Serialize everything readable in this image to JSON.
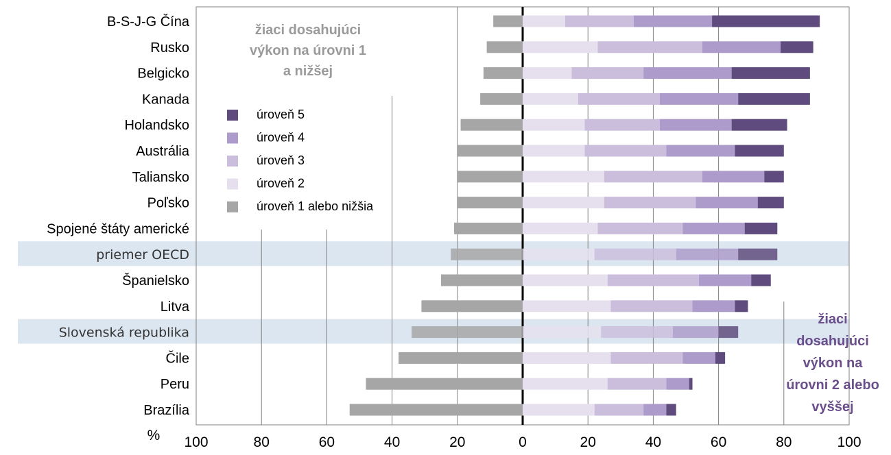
{
  "chart_data": {
    "type": "bar",
    "orientation": "horizontal",
    "stacked": "diverging",
    "xlim": [
      -100,
      100
    ],
    "x_ticks": [
      "100",
      "80",
      "60",
      "40",
      "20",
      "0",
      "20",
      "40",
      "60",
      "80",
      "100"
    ],
    "unit_label": "%",
    "categories": [
      "B-S-J-G Čína",
      "Rusko",
      "Belgicko",
      "Kanada",
      "Holandsko",
      "Austrália",
      "Taliansko",
      "Poľsko",
      "Spojené štáty americké",
      "priemer OECD",
      "Španielsko",
      "Litva",
      "Slovenská republika",
      "Čile",
      "Peru",
      "Brazília"
    ],
    "highlighted": [
      "priemer OECD",
      "Slovenská republika"
    ],
    "series": [
      {
        "name": "úroveň 1 alebo nižšia",
        "direction": "left",
        "color": "#a6a6a6",
        "values": [
          9,
          11,
          12,
          13,
          19,
          20,
          20,
          20,
          21,
          22,
          25,
          31,
          34,
          38,
          48,
          53
        ]
      },
      {
        "name": "úroveň 2",
        "color": "#e6e0ee",
        "values": [
          13,
          23,
          15,
          17,
          19,
          19,
          25,
          25,
          23,
          22,
          26,
          27,
          24,
          27,
          26,
          22
        ]
      },
      {
        "name": "úroveň 3",
        "color": "#cbbedd",
        "values": [
          21,
          32,
          22,
          25,
          23,
          25,
          30,
          28,
          26,
          25,
          28,
          25,
          22,
          22,
          18,
          15
        ]
      },
      {
        "name": "úroveň 4",
        "color": "#ad9ccb",
        "values": [
          24,
          24,
          27,
          24,
          22,
          21,
          19,
          19,
          19,
          19,
          16,
          13,
          14,
          10,
          7,
          7
        ]
      },
      {
        "name": "úroveň 5",
        "color": "#5f4b7e",
        "values": [
          33,
          10,
          24,
          22,
          17,
          15,
          6,
          8,
          10,
          12,
          6,
          4,
          6,
          3,
          1,
          3
        ]
      }
    ],
    "grid": true,
    "legend": {
      "placement": "left-center",
      "order": [
        "úroveň 5",
        "úroveň 4",
        "úroveň 3",
        "úroveň 2",
        "úroveň 1 alebo nižšia"
      ]
    },
    "annotations": {
      "left": [
        "žiaci dosahujúci",
        "výkon na úrovni 1",
        "a nižšej"
      ],
      "right": [
        "žiaci",
        "dosahujúci",
        "výkon na",
        "úrovni 2 alebo",
        "vyššej"
      ]
    }
  }
}
